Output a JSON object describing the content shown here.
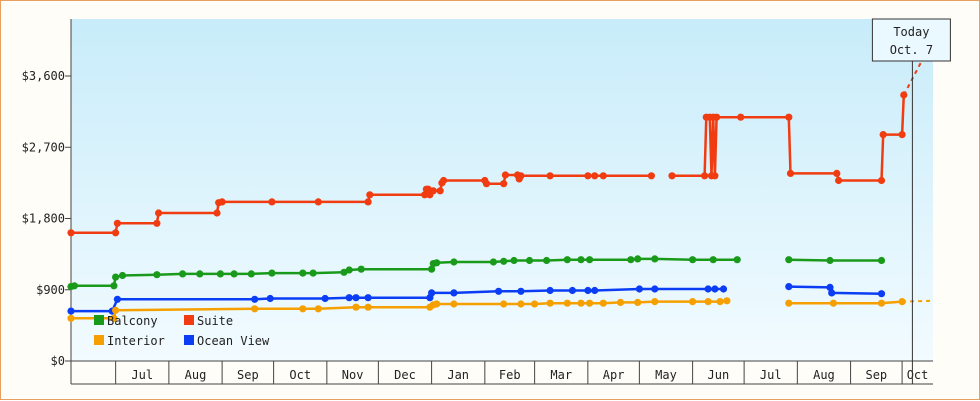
{
  "chart_data": {
    "type": "line",
    "title": "",
    "xlabel": "",
    "ylabel": "",
    "ylim": [
      0,
      4320
    ],
    "y_ticks": [
      {
        "value": 0,
        "label": "$0"
      },
      {
        "value": 900,
        "label": "$900"
      },
      {
        "value": 1800,
        "label": "$1,800"
      },
      {
        "value": 2700,
        "label": "$2,700"
      },
      {
        "value": 3600,
        "label": "$3,600"
      }
    ],
    "x_domain": [
      "2023-06-05",
      "2024-10-19"
    ],
    "month_ticks": [
      {
        "label": "Jul",
        "start": "2023-07-01",
        "end": "2023-08-01"
      },
      {
        "label": "Aug",
        "start": "2023-08-01",
        "end": "2023-09-01"
      },
      {
        "label": "Sep",
        "start": "2023-09-01",
        "end": "2023-10-01"
      },
      {
        "label": "Oct",
        "start": "2023-10-01",
        "end": "2023-11-01"
      },
      {
        "label": "Nov",
        "start": "2023-11-01",
        "end": "2023-12-01"
      },
      {
        "label": "Dec",
        "start": "2023-12-01",
        "end": "2024-01-01"
      },
      {
        "label": "Jan",
        "start": "2024-01-01",
        "end": "2024-02-01"
      },
      {
        "label": "Feb",
        "start": "2024-02-01",
        "end": "2024-03-01"
      },
      {
        "label": "Mar",
        "start": "2024-03-01",
        "end": "2024-04-01"
      },
      {
        "label": "Apr",
        "start": "2024-04-01",
        "end": "2024-05-01"
      },
      {
        "label": "May",
        "start": "2024-05-01",
        "end": "2024-06-01"
      },
      {
        "label": "Jun",
        "start": "2024-06-01",
        "end": "2024-07-01"
      },
      {
        "label": "Jul",
        "start": "2024-07-01",
        "end": "2024-08-01"
      },
      {
        "label": "Aug",
        "start": "2024-08-01",
        "end": "2024-09-01"
      },
      {
        "label": "Sep",
        "start": "2024-09-01",
        "end": "2024-10-01"
      },
      {
        "label": "Oct",
        "start": "2024-10-01",
        "end": "2024-10-19"
      }
    ],
    "today": {
      "date": "2024-10-07",
      "label_line1": "Today",
      "label_line2": "Oct. 7"
    },
    "grid": false,
    "legend_position": "bottom-left",
    "series": [
      {
        "name": "Suite",
        "color": "#f03c10",
        "segments": [
          [
            [
              "2023-06-05",
              1620
            ],
            [
              "2023-07-01",
              1620
            ],
            [
              "2023-07-02",
              1740
            ],
            [
              "2023-07-25",
              1740
            ],
            [
              "2023-07-26",
              1870
            ],
            [
              "2023-08-29",
              1870
            ],
            [
              "2023-08-30",
              2000
            ],
            [
              "2023-09-01",
              2010
            ],
            [
              "2023-09-30",
              2010
            ],
            [
              "2023-10-27",
              2010
            ],
            [
              "2023-11-25",
              2010
            ],
            [
              "2023-11-26",
              2100
            ],
            [
              "2023-12-28",
              2100
            ],
            [
              "2023-12-29",
              2170
            ],
            [
              "2023-12-30",
              2170
            ],
            [
              "2023-12-31",
              2100
            ],
            [
              "2024-01-02",
              2150
            ],
            [
              "2024-01-06",
              2150
            ],
            [
              "2024-01-07",
              2250
            ],
            [
              "2024-01-08",
              2280
            ],
            [
              "2024-02-01",
              2280
            ],
            [
              "2024-02-02",
              2240
            ],
            [
              "2024-02-12",
              2240
            ],
            [
              "2024-02-13",
              2350
            ],
            [
              "2024-02-20",
              2350
            ],
            [
              "2024-02-21",
              2300
            ],
            [
              "2024-02-22",
              2340
            ],
            [
              "2024-03-10",
              2340
            ],
            [
              "2024-04-01",
              2340
            ],
            [
              "2024-04-05",
              2340
            ],
            [
              "2024-04-10",
              2340
            ],
            [
              "2024-05-08",
              2340
            ]
          ],
          [
            [
              "2024-05-20",
              2340
            ],
            [
              "2024-06-08",
              2340
            ],
            [
              "2024-06-09",
              3080
            ],
            [
              "2024-06-11",
              3080
            ],
            [
              "2024-06-12",
              2340
            ],
            [
              "2024-06-13",
              3080
            ],
            [
              "2024-06-14",
              2340
            ],
            [
              "2024-06-15",
              3080
            ],
            [
              "2024-06-29",
              3080
            ],
            [
              "2024-07-27",
              3080
            ],
            [
              "2024-07-28",
              2370
            ],
            [
              "2024-08-24",
              2370
            ],
            [
              "2024-08-25",
              2280
            ],
            [
              "2024-09-19",
              2280
            ],
            [
              "2024-09-20",
              2860
            ],
            [
              "2024-10-01",
              2860
            ],
            [
              "2024-10-02",
              3360
            ]
          ]
        ],
        "projection": [
          [
            "2024-10-02",
            3360
          ],
          [
            "2024-10-19",
            4060
          ]
        ]
      },
      {
        "name": "Balcony",
        "color": "#1a9a1a",
        "segments": [
          [
            [
              "2023-06-05",
              940
            ],
            [
              "2023-06-07",
              950
            ],
            [
              "2023-06-30",
              950
            ],
            [
              "2023-07-01",
              1060
            ],
            [
              "2023-07-05",
              1080
            ],
            [
              "2023-07-25",
              1090
            ],
            [
              "2023-08-09",
              1100
            ],
            [
              "2023-08-19",
              1100
            ],
            [
              "2023-08-31",
              1100
            ],
            [
              "2023-09-08",
              1100
            ],
            [
              "2023-09-18",
              1100
            ],
            [
              "2023-09-30",
              1110
            ],
            [
              "2023-10-18",
              1110
            ],
            [
              "2023-10-24",
              1110
            ],
            [
              "2023-11-11",
              1120
            ],
            [
              "2023-11-14",
              1150
            ],
            [
              "2023-11-21",
              1160
            ],
            [
              "2024-01-01",
              1160
            ],
            [
              "2024-01-02",
              1230
            ],
            [
              "2024-01-04",
              1240
            ],
            [
              "2024-01-14",
              1250
            ],
            [
              "2024-02-06",
              1250
            ],
            [
              "2024-02-12",
              1260
            ],
            [
              "2024-02-18",
              1270
            ],
            [
              "2024-02-27",
              1270
            ],
            [
              "2024-03-08",
              1270
            ],
            [
              "2024-03-20",
              1280
            ],
            [
              "2024-03-28",
              1280
            ],
            [
              "2024-04-02",
              1280
            ],
            [
              "2024-04-26",
              1280
            ],
            [
              "2024-04-30",
              1290
            ],
            [
              "2024-05-10",
              1290
            ],
            [
              "2024-06-01",
              1280
            ],
            [
              "2024-06-13",
              1280
            ],
            [
              "2024-06-27",
              1280
            ]
          ]
        ],
        "segments2": [
          [
            [
              "2024-07-27",
              1280
            ],
            [
              "2024-08-20",
              1270
            ],
            [
              "2024-09-19",
              1270
            ]
          ]
        ]
      },
      {
        "name": "Ocean View",
        "color": "#0b3df5",
        "segments": [
          [
            [
              "2023-06-05",
              630
            ],
            [
              "2023-06-29",
              630
            ],
            [
              "2023-07-02",
              780
            ],
            [
              "2023-09-20",
              780
            ],
            [
              "2023-09-29",
              790
            ],
            [
              "2023-10-31",
              790
            ],
            [
              "2023-11-14",
              800
            ],
            [
              "2023-11-18",
              800
            ],
            [
              "2023-11-25",
              800
            ],
            [
              "2023-12-31",
              800
            ],
            [
              "2024-01-01",
              860
            ],
            [
              "2024-01-14",
              860
            ],
            [
              "2024-02-09",
              880
            ],
            [
              "2024-02-22",
              880
            ],
            [
              "2024-03-10",
              890
            ],
            [
              "2024-03-23",
              890
            ],
            [
              "2024-04-01",
              890
            ],
            [
              "2024-04-05",
              890
            ],
            [
              "2024-05-01",
              910
            ],
            [
              "2024-05-10",
              910
            ],
            [
              "2024-06-10",
              910
            ],
            [
              "2024-06-14",
              910
            ],
            [
              "2024-06-19",
              910
            ]
          ]
        ],
        "segments2": [
          [
            [
              "2024-07-27",
              940
            ],
            [
              "2024-08-20",
              930
            ],
            [
              "2024-08-21",
              860
            ],
            [
              "2024-09-19",
              850
            ]
          ]
        ]
      },
      {
        "name": "Interior",
        "color": "#f5a000",
        "segments": [
          [
            [
              "2023-06-05",
              540
            ],
            [
              "2023-06-30",
              540
            ],
            [
              "2023-07-01",
              640
            ],
            [
              "2023-09-20",
              660
            ],
            [
              "2023-10-18",
              660
            ],
            [
              "2023-10-27",
              660
            ],
            [
              "2023-11-18",
              680
            ],
            [
              "2023-11-25",
              680
            ],
            [
              "2023-12-31",
              680
            ],
            [
              "2024-01-02",
              710
            ],
            [
              "2024-01-04",
              720
            ],
            [
              "2024-01-14",
              720
            ],
            [
              "2024-02-12",
              720
            ],
            [
              "2024-02-22",
              720
            ],
            [
              "2024-03-01",
              720
            ],
            [
              "2024-03-10",
              730
            ],
            [
              "2024-03-20",
              730
            ],
            [
              "2024-03-28",
              730
            ],
            [
              "2024-04-02",
              730
            ],
            [
              "2024-04-10",
              730
            ],
            [
              "2024-04-20",
              740
            ],
            [
              "2024-04-30",
              740
            ],
            [
              "2024-05-10",
              750
            ],
            [
              "2024-06-01",
              750
            ],
            [
              "2024-06-10",
              750
            ],
            [
              "2024-06-17",
              750
            ],
            [
              "2024-06-21",
              760
            ]
          ]
        ],
        "segments2": [
          [
            [
              "2024-07-27",
              730
            ],
            [
              "2024-08-22",
              730
            ],
            [
              "2024-09-19",
              730
            ],
            [
              "2024-10-01",
              750
            ]
          ]
        ],
        "projection": [
          [
            "2024-10-01",
            750
          ],
          [
            "2024-10-19",
            760
          ]
        ]
      }
    ]
  },
  "legend": [
    {
      "name": "Balcony",
      "color": "#1a9a1a"
    },
    {
      "name": "Suite",
      "color": "#f03c10"
    },
    {
      "name": "Interior",
      "color": "#f5a000"
    },
    {
      "name": "Ocean View",
      "color": "#0b3df5"
    }
  ]
}
